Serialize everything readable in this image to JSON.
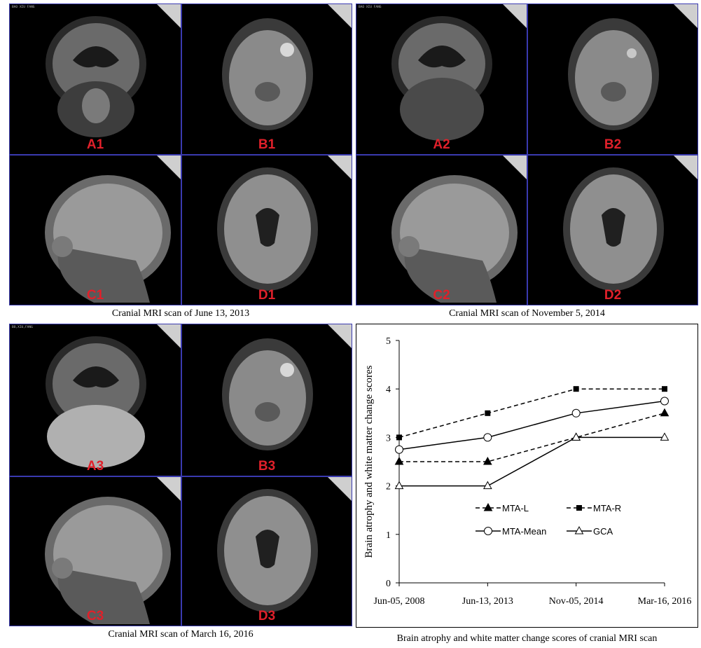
{
  "figure": {
    "captions": {
      "scan1": "Cranial MRI scan of June 13, 2013",
      "scan2": "Cranial MRI scan of November 5, 2014",
      "scan3": "Cranial MRI scan of March 16, 2016",
      "chart": "Brain atrophy and white matter change scores of cranial MRI scan"
    },
    "panels": {
      "scan1": [
        "A1",
        "B1",
        "C1",
        "D1"
      ],
      "scan2": [
        "A2",
        "B2",
        "C2",
        "D2"
      ],
      "scan3": [
        "A3",
        "B3",
        "C3",
        "D3"
      ]
    },
    "scan_headers": {
      "scan1": "BAO XIU FANG",
      "scan2": "BAO XIU FANG",
      "scan3": "BO,XIU,FANG"
    },
    "label_color": "#e0202a"
  },
  "chart_data": {
    "type": "line",
    "categories": [
      "Jun-05, 2008",
      "Jun-13, 2013",
      "Nov-05, 2014",
      "Mar-16, 2016"
    ],
    "ylabel": "Brain atrophy and white matter change scores",
    "xlabel": "",
    "ylim": [
      0,
      5
    ],
    "yticks": [
      0,
      1,
      2,
      3,
      4,
      5
    ],
    "grid": false,
    "legend_position": "lower-middle",
    "series": [
      {
        "name": "MTA-L",
        "values": [
          2.5,
          2.5,
          3,
          3.5
        ],
        "line": "dashed",
        "marker": "filled-triangle"
      },
      {
        "name": "MTA-R",
        "values": [
          3,
          3.5,
          4,
          4
        ],
        "line": "dashed",
        "marker": "filled-square"
      },
      {
        "name": "MTA-Mean",
        "values": [
          2.75,
          3,
          3.5,
          3.75
        ],
        "line": "solid",
        "marker": "open-circle"
      },
      {
        "name": "GCA",
        "values": [
          2,
          2,
          3,
          3
        ],
        "line": "solid",
        "marker": "open-triangle"
      }
    ]
  }
}
